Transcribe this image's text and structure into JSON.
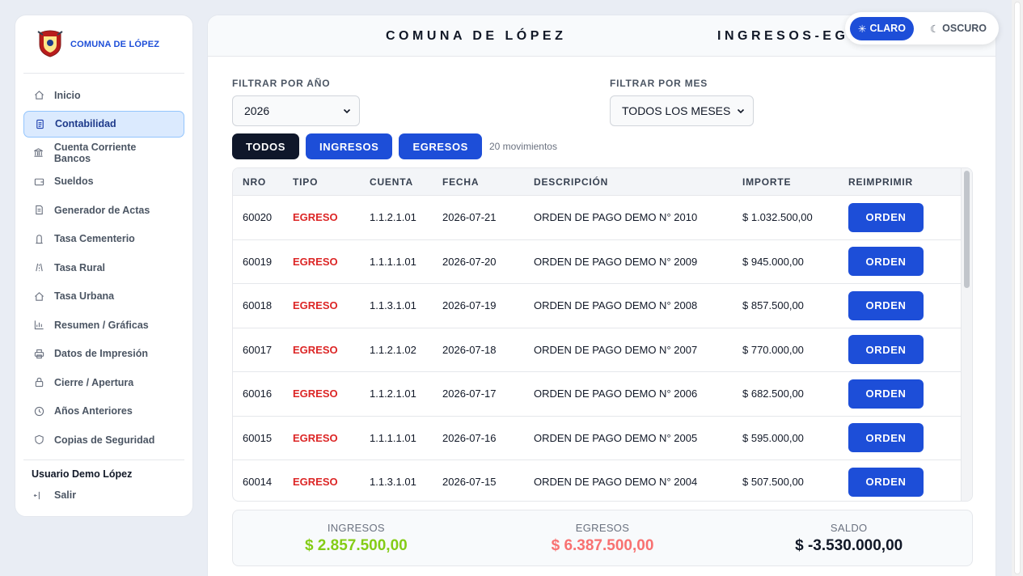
{
  "brand": {
    "name": "COMUNA DE LÓPEZ"
  },
  "sidebar": {
    "items": [
      {
        "label": "Inicio",
        "icon": "home-icon"
      },
      {
        "label": "Contabilidad",
        "icon": "document-icon",
        "active": true
      },
      {
        "label": "Cuenta Corriente Bancos",
        "icon": "bank-icon"
      },
      {
        "label": "Sueldos",
        "icon": "wallet-icon"
      },
      {
        "label": "Generador de Actas",
        "icon": "file-icon"
      },
      {
        "label": "Tasa Cementerio",
        "icon": "tomb-icon"
      },
      {
        "label": "Tasa Rural",
        "icon": "road-icon"
      },
      {
        "label": "Tasa Urbana",
        "icon": "house-icon"
      },
      {
        "label": "Resumen / Gráficas",
        "icon": "chart-icon"
      },
      {
        "label": "Datos de Impresión",
        "icon": "printer-icon"
      },
      {
        "label": "Cierre / Apertura",
        "icon": "lock-icon"
      },
      {
        "label": "Años Anteriores",
        "icon": "clock-icon"
      },
      {
        "label": "Copias de Seguridad",
        "icon": "shield-icon"
      }
    ],
    "user": "Usuario Demo López",
    "logout": "Salir"
  },
  "header": {
    "title_left": "COMUNA DE LÓPEZ",
    "title_right": "INGRESOS-EGRESOS"
  },
  "theme": {
    "light": "CLARO",
    "dark": "OSCURO"
  },
  "filters": {
    "year_label": "FILTRAR POR AÑO",
    "year_value": "2026",
    "month_label": "FILTRAR POR MES",
    "month_value": "TODOS LOS MESES"
  },
  "chips": {
    "all": "TODOS",
    "income": "INGRESOS",
    "expense": "EGRESOS",
    "count": "20 movimientos"
  },
  "table": {
    "headers": [
      "NRO",
      "TIPO",
      "CUENTA",
      "FECHA",
      "DESCRIPCIÓN",
      "IMPORTE",
      "REIMPRIMIR"
    ],
    "button_label": "ORDEN",
    "rows": [
      {
        "nro": "60020",
        "tipo": "EGRESO",
        "cuenta": "1.1.2.1.01",
        "fecha": "2026-07-21",
        "desc": "ORDEN DE PAGO DEMO N° 2010",
        "importe": "$ 1.032.500,00"
      },
      {
        "nro": "60019",
        "tipo": "EGRESO",
        "cuenta": "1.1.1.1.01",
        "fecha": "2026-07-20",
        "desc": "ORDEN DE PAGO DEMO N° 2009",
        "importe": "$ 945.000,00"
      },
      {
        "nro": "60018",
        "tipo": "EGRESO",
        "cuenta": "1.1.3.1.01",
        "fecha": "2026-07-19",
        "desc": "ORDEN DE PAGO DEMO N° 2008",
        "importe": "$ 857.500,00"
      },
      {
        "nro": "60017",
        "tipo": "EGRESO",
        "cuenta": "1.1.2.1.02",
        "fecha": "2026-07-18",
        "desc": "ORDEN DE PAGO DEMO N° 2007",
        "importe": "$ 770.000,00"
      },
      {
        "nro": "60016",
        "tipo": "EGRESO",
        "cuenta": "1.1.2.1.01",
        "fecha": "2026-07-17",
        "desc": "ORDEN DE PAGO DEMO N° 2006",
        "importe": "$ 682.500,00"
      },
      {
        "nro": "60015",
        "tipo": "EGRESO",
        "cuenta": "1.1.1.1.01",
        "fecha": "2026-07-16",
        "desc": "ORDEN DE PAGO DEMO N° 2005",
        "importe": "$ 595.000,00"
      },
      {
        "nro": "60014",
        "tipo": "EGRESO",
        "cuenta": "1.1.3.1.01",
        "fecha": "2026-07-15",
        "desc": "ORDEN DE PAGO DEMO N° 2004",
        "importe": "$ 507.500,00"
      }
    ]
  },
  "summary": {
    "income_label": "INGRESOS",
    "income_value": "$ 2.857.500,00",
    "expense_label": "EGRESOS",
    "expense_value": "$ 6.387.500,00",
    "balance_label": "SALDO",
    "balance_value": "$ -3.530.000,00"
  },
  "colors": {
    "accent": "#1d4ed8",
    "income": "#84cc16",
    "expense": "#f87171",
    "egreso_text": "#dc2626"
  }
}
